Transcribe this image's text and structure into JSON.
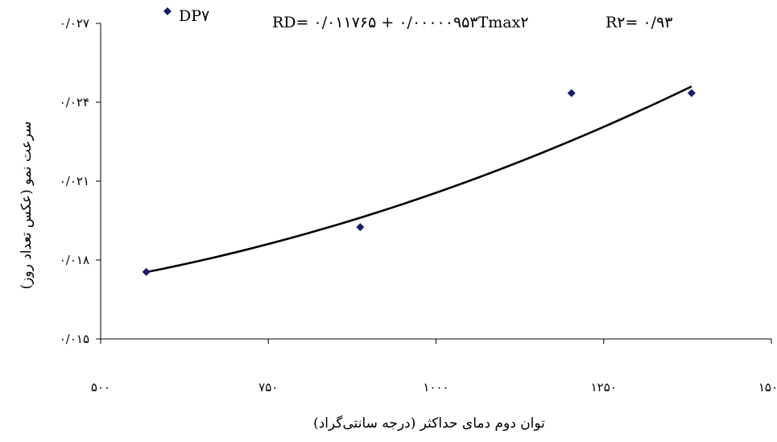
{
  "chart_data": {
    "type": "scatter",
    "title": "",
    "xlabel": "توان دوم دمای حداکثر (درجه سانتی‌گراد)",
    "ylabel": "سرعت نمو (عکس تعداد روز)",
    "xlim": [
      500,
      1500
    ],
    "ylim": [
      0.015,
      0.027
    ],
    "x_ticks": [
      500,
      750,
      1000,
      1250,
      1500
    ],
    "y_ticks": [
      0.015,
      0.018,
      0.021,
      0.024,
      0.027
    ],
    "x_tick_labels": [
      "۵۰۰",
      "۷۵۰",
      "۱۰۰۰",
      "۱۲۵۰",
      "۱۵۰۰"
    ],
    "y_tick_labels": [
      "۰/۰۱۵",
      "۰/۰۱۸",
      "۰/۰۲۱",
      "۰/۰۲۴",
      "۰/۰۲۷"
    ],
    "grid": false,
    "legend_position": "top-left",
    "series": [
      {
        "name": "DP۷",
        "marker": "diamond",
        "color": "#1a1a6e",
        "x": [
          568,
          887,
          1202,
          1381
        ],
        "y": [
          0.01755,
          0.01925,
          0.02435,
          0.02435
        ]
      }
    ],
    "trendline": {
      "x": [
        568,
        1381
      ],
      "y": [
        0.01754,
        0.0246
      ],
      "color": "#000000",
      "equation": "RD= ۰/۰۱۱۷۶۵ + ۰/۰۰۰۰۰۹۵۳Tmax۲",
      "r2_label": "R۲= ۰/۹۳"
    }
  }
}
